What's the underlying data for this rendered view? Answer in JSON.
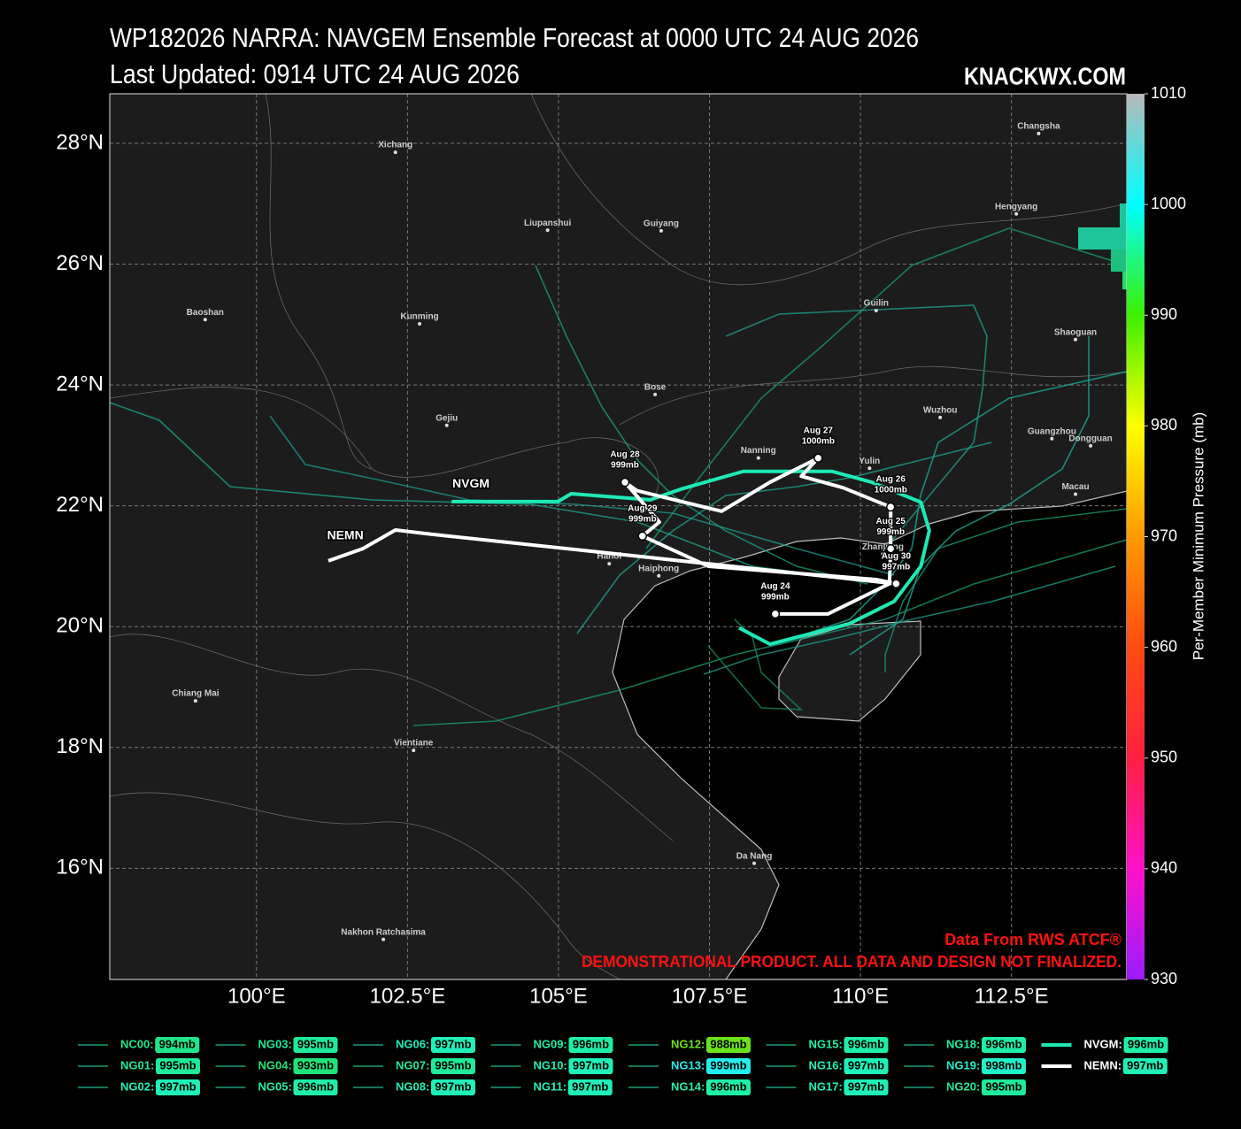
{
  "map": {
    "title": "WP182026 NARRA: NAVGEM Ensemble Forecast at 0000 UTC 24 AUG 2026",
    "subtitle": "Last Updated: 0914 UTC 24 AUG 2026",
    "brand": "KNACKWX.COM",
    "credit": "Data From RWS ATCF®",
    "disclaimer": "DEMONSTRATIONAL PRODUCT. ALL DATA AND DESIGN NOT FINALIZED.",
    "xlim": [
      97.57,
      114.41
    ],
    "ylim": [
      14.16,
      28.82
    ],
    "xticks": [
      {
        "value": 100,
        "label": "100°E"
      },
      {
        "value": 102.5,
        "label": "102.5°E"
      },
      {
        "value": 105,
        "label": "105°E"
      },
      {
        "value": 107.5,
        "label": "107.5°E"
      },
      {
        "value": 110,
        "label": "110°E"
      },
      {
        "value": 112.5,
        "label": "112.5°E"
      }
    ],
    "yticks": [
      {
        "value": 16,
        "label": "16°N"
      },
      {
        "value": 18,
        "label": "18°N"
      },
      {
        "value": 20,
        "label": "20°N"
      },
      {
        "value": 22,
        "label": "22°N"
      },
      {
        "value": 24,
        "label": "24°N"
      },
      {
        "value": 26,
        "label": "26°N"
      },
      {
        "value": 28,
        "label": "28°N"
      }
    ],
    "grid": true,
    "cities": [
      {
        "name": "Xichang",
        "lon": 102.3,
        "lat": 27.94
      },
      {
        "name": "Changsha",
        "lon": 112.95,
        "lat": 28.25
      },
      {
        "name": "Liupanshui",
        "lon": 104.82,
        "lat": 26.65
      },
      {
        "name": "Guiyang",
        "lon": 106.7,
        "lat": 26.64
      },
      {
        "name": "Hengyang",
        "lon": 112.58,
        "lat": 26.92
      },
      {
        "name": "Baoshan",
        "lon": 99.15,
        "lat": 25.17
      },
      {
        "name": "Kunming",
        "lon": 102.7,
        "lat": 25.1
      },
      {
        "name": "Guilin",
        "lon": 110.26,
        "lat": 25.32
      },
      {
        "name": "Shaoguan",
        "lon": 113.56,
        "lat": 24.84
      },
      {
        "name": "Bose",
        "lon": 106.6,
        "lat": 23.93
      },
      {
        "name": "Gejiu",
        "lon": 103.15,
        "lat": 23.42
      },
      {
        "name": "Wuzhou",
        "lon": 111.32,
        "lat": 23.55
      },
      {
        "name": "Guangzhou",
        "lon": 113.17,
        "lat": 23.2
      },
      {
        "name": "Dongguan",
        "lon": 113.81,
        "lat": 23.08
      },
      {
        "name": "Nanning",
        "lon": 108.31,
        "lat": 22.88
      },
      {
        "name": "Yulin",
        "lon": 110.15,
        "lat": 22.71
      },
      {
        "name": "Macau",
        "lon": 113.56,
        "lat": 22.28
      },
      {
        "name": "Hanoi",
        "lon": 105.84,
        "lat": 21.13
      },
      {
        "name": "Haiphong",
        "lon": 106.66,
        "lat": 20.93
      },
      {
        "name": "Zhanjiang",
        "lon": 110.37,
        "lat": 21.29
      },
      {
        "name": "Chiang Mai",
        "lon": 98.99,
        "lat": 18.86
      },
      {
        "name": "Vientiane",
        "lon": 102.6,
        "lat": 18.04
      },
      {
        "name": "Da Nang",
        "lon": 108.24,
        "lat": 16.17
      },
      {
        "name": "Nakhon Ratchasima",
        "lon": 102.1,
        "lat": 14.91
      }
    ],
    "tracks": [
      {
        "name": "NVGM",
        "color": "#1de9b6",
        "lon": [
          103.23,
          104.99,
          105.21,
          106.52,
          107.04,
          108.06,
          109.53,
          110.19,
          111.0,
          111.14,
          111.0,
          110.56,
          109.82,
          108.5,
          107.99
        ],
        "lat": [
          22.07,
          22.07,
          22.2,
          22.1,
          22.28,
          22.57,
          22.57,
          22.39,
          22.06,
          21.59,
          21.0,
          20.42,
          20.05,
          19.71,
          19.98
        ]
      },
      {
        "name": "NEMN",
        "color": "#ffffff",
        "lon": [
          108.59,
          109.46,
          110.48,
          110.5,
          110.5,
          109.71,
          109.02,
          109.3,
          108.5,
          107.7,
          106.3,
          106.1,
          106.67,
          106.39,
          107.48,
          110.26,
          110.59,
          102.89,
          102.3,
          101.76,
          101.19
        ],
        "lat": [
          20.21,
          20.21,
          20.71,
          21.29,
          21.98,
          22.3,
          22.49,
          22.79,
          22.39,
          21.91,
          22.25,
          22.39,
          21.73,
          21.5,
          21.0,
          20.78,
          20.71,
          21.53,
          21.6,
          21.29,
          21.09
        ]
      }
    ],
    "track_labels": [
      {
        "text": "NVGM",
        "lon": 103.55,
        "lat": 22.36
      },
      {
        "text": "NEMN",
        "lon": 101.47,
        "lat": 21.5
      }
    ],
    "annotations": [
      {
        "date": "Aug 24",
        "pressure": "999mb",
        "lon": 108.59,
        "lat": 20.21
      },
      {
        "date": "Aug 25",
        "pressure": "999mb",
        "lon": 110.5,
        "lat": 21.29
      },
      {
        "date": "Aug 26",
        "pressure": "1000mb",
        "lon": 110.5,
        "lat": 21.98
      },
      {
        "date": "Aug 27",
        "pressure": "1000mb",
        "lon": 109.3,
        "lat": 22.79
      },
      {
        "date": "Aug 28",
        "pressure": "999mb",
        "lon": 106.1,
        "lat": 22.39
      },
      {
        "date": "Aug 29",
        "pressure": "999mb",
        "lon": 106.39,
        "lat": 21.5
      },
      {
        "date": "Aug 30",
        "pressure": "997mb",
        "lon": 110.59,
        "lat": 20.71
      }
    ],
    "colorbar": {
      "label": "Per-Member Minimum Pressure (mb)",
      "lim": [
        930,
        1010
      ],
      "ticks": [
        930,
        940,
        950,
        960,
        970,
        980,
        990,
        1000,
        1010
      ],
      "colors": [
        "#9b1cff",
        "#ff10c8",
        "#ff2040",
        "#ff4a10",
        "#ff9a00",
        "#ffff00",
        "#3cf000",
        "#00ffff",
        "#b8b8b8"
      ]
    },
    "legend": [
      {
        "name": "NC00",
        "pressure": "994mb",
        "color": "#1fe58a"
      },
      {
        "name": "NG01",
        "pressure": "995mb",
        "color": "#1fe99a"
      },
      {
        "name": "NG02",
        "pressure": "997mb",
        "color": "#20f0b8"
      },
      {
        "name": "NG03",
        "pressure": "995mb",
        "color": "#1fe99a"
      },
      {
        "name": "NG04",
        "pressure": "993mb",
        "color": "#1ee47a"
      },
      {
        "name": "NG05",
        "pressure": "996mb",
        "color": "#1fedaa"
      },
      {
        "name": "NG06",
        "pressure": "997mb",
        "color": "#20f0b8"
      },
      {
        "name": "NG07",
        "pressure": "995mb",
        "color": "#1fe99a"
      },
      {
        "name": "NG08",
        "pressure": "997mb",
        "color": "#20f0b8"
      },
      {
        "name": "NG09",
        "pressure": "996mb",
        "color": "#1fedaa"
      },
      {
        "name": "NG10",
        "pressure": "997mb",
        "color": "#20f0b8"
      },
      {
        "name": "NG11",
        "pressure": "997mb",
        "color": "#20f0b8"
      },
      {
        "name": "NG12",
        "pressure": "988mb",
        "color": "#6ae21a"
      },
      {
        "name": "NG13",
        "pressure": "999mb",
        "color": "#22eeec"
      },
      {
        "name": "NG14",
        "pressure": "996mb",
        "color": "#1fedaa"
      },
      {
        "name": "NG15",
        "pressure": "996mb",
        "color": "#1fedaa"
      },
      {
        "name": "NG16",
        "pressure": "997mb",
        "color": "#20f0b8"
      },
      {
        "name": "NG17",
        "pressure": "997mb",
        "color": "#20f0b8"
      },
      {
        "name": "NG18",
        "pressure": "996mb",
        "color": "#1fedaa"
      },
      {
        "name": "NG19",
        "pressure": "998mb",
        "color": "#20f2cc"
      },
      {
        "name": "NG20",
        "pressure": "995mb",
        "color": "#1fe99a"
      },
      {
        "name": "NVGM",
        "pressure": "996mb",
        "color": "#1fedaa",
        "line": "#1de9b6"
      },
      {
        "name": "NEMN",
        "pressure": "997mb",
        "color": "#20f0b8",
        "line": "#ffffff"
      }
    ]
  }
}
